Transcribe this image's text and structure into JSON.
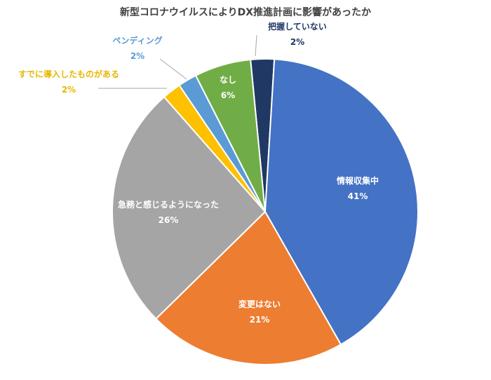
{
  "chart_data": {
    "type": "pie",
    "title": "新型コロナウイルスによりDX推進計画に影響があったか",
    "slices": [
      {
        "label": "把握していない",
        "percent_label": "2%",
        "value": 2.5,
        "color": "#203864"
      },
      {
        "label": "情報収集中",
        "percent_label": "41%",
        "value": 41,
        "color": "#4472C4"
      },
      {
        "label": "変更はない",
        "percent_label": "21%",
        "value": 21,
        "color": "#ED7D31"
      },
      {
        "label": "急務と感じるようになった",
        "percent_label": "26%",
        "value": 26,
        "color": "#A5A5A5"
      },
      {
        "label": "すでに導入したものがある",
        "percent_label": "2%",
        "value": 2,
        "color": "#FFC000"
      },
      {
        "label": "ペンディング",
        "percent_label": "2%",
        "value": 2,
        "color": "#5B9BD5"
      },
      {
        "label": "なし",
        "percent_label": "6%",
        "value": 6,
        "color": "#70AD47"
      }
    ],
    "start_angle_deg": -5.5,
    "direction": "clockwise",
    "label_colors": {
      "把握していない": "#203864",
      "情報収集中": "#ffffff",
      "変更はない": "#ffffff",
      "急務と感じるようになった": "#ffffff",
      "すでに導入したものがある": "#E6B800",
      "ペンディング": "#5B9BD5",
      "なし": "#ffffff"
    }
  }
}
